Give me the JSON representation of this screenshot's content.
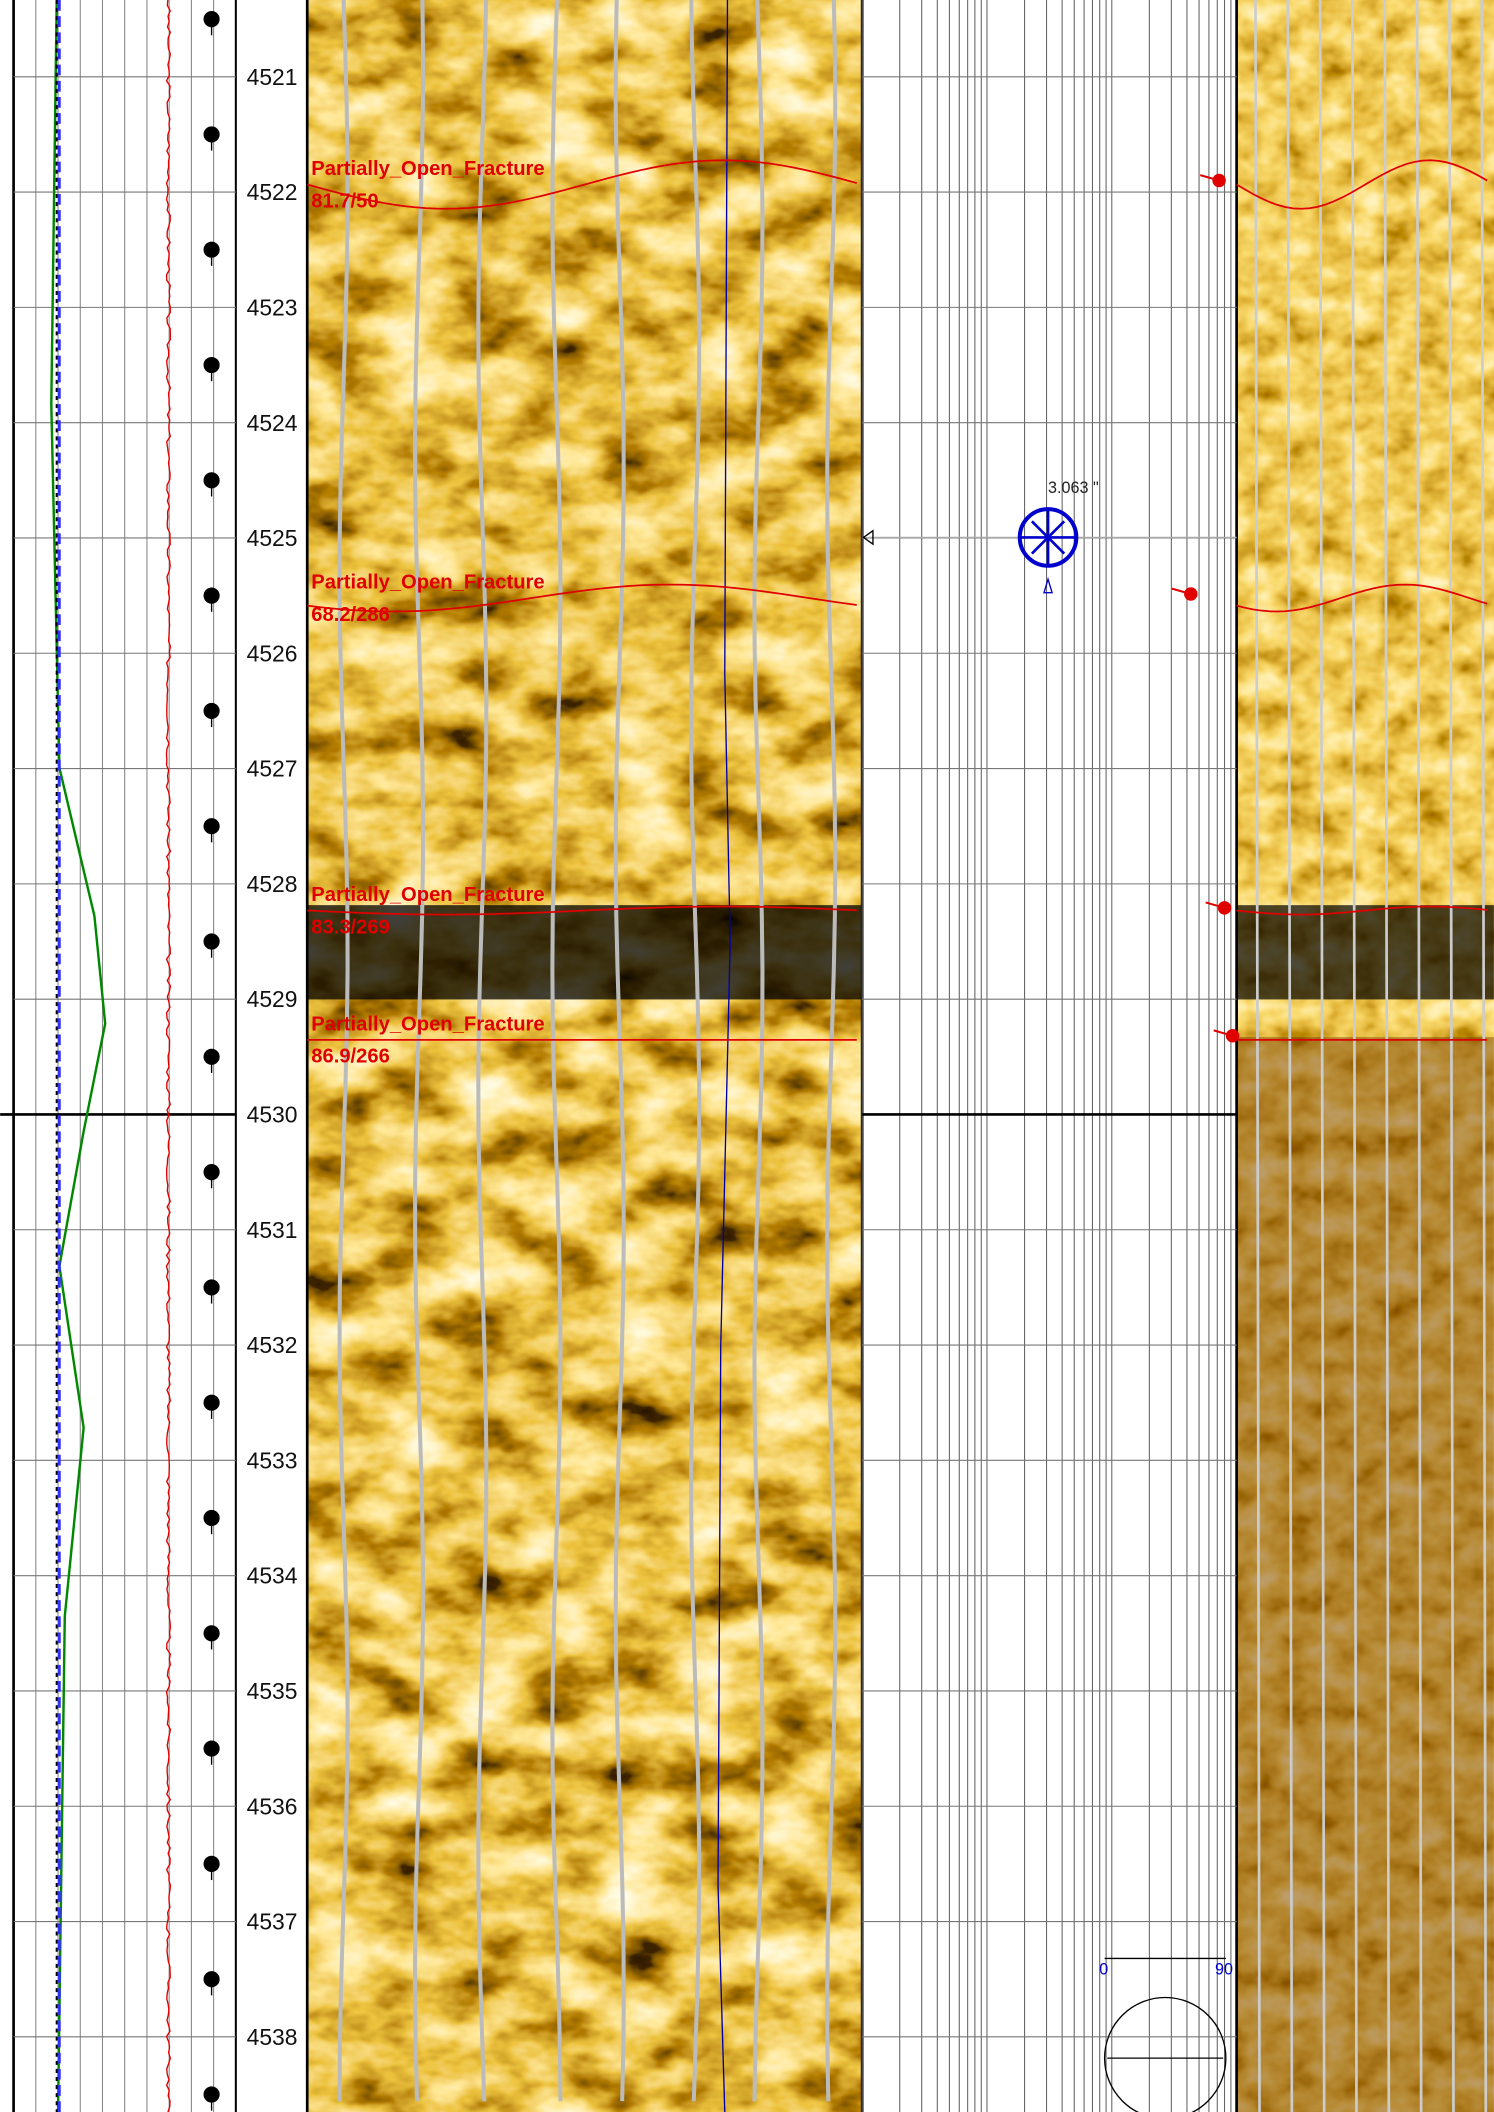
{
  "depth_track": {
    "labels": [
      4521,
      4522,
      4523,
      4524,
      4525,
      4526,
      4527,
      4528,
      4529,
      4530,
      4531,
      4532,
      4533,
      4534,
      4535,
      4536,
      4537,
      4538
    ]
  },
  "fractures": [
    {
      "type": "Partially_Open_Fracture",
      "dip_azimuth": "81.7/50"
    },
    {
      "type": "Partially_Open_Fracture",
      "dip_azimuth": "68.2/286"
    },
    {
      "type": "Partially_Open_Fracture",
      "dip_azimuth": "83.3/269"
    },
    {
      "type": "Partially_Open_Fracture",
      "dip_azimuth": "86.9/266"
    }
  ],
  "caliper": {
    "label": "3.063 \""
  },
  "dip_scale": {
    "min_label": 0,
    "max_label": 90
  }
}
